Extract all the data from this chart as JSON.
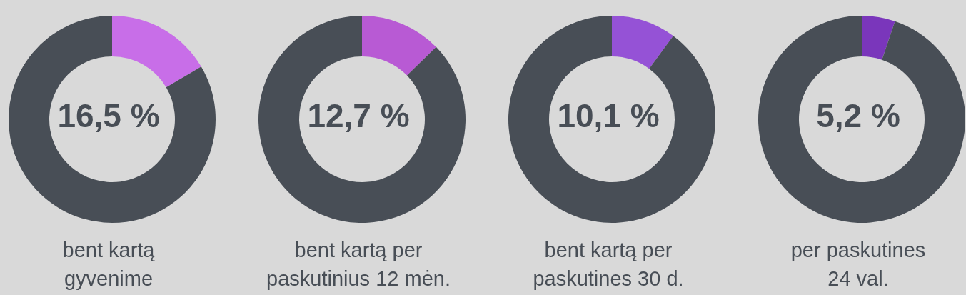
{
  "chart_data": [
    {
      "type": "donut",
      "categories": [
        null,
        null
      ],
      "values": [
        16.5,
        83.5
      ],
      "colors": [
        "#c86ee8",
        "#484e56"
      ],
      "annotations": [
        "16,5 %"
      ],
      "xlabel": "bent kartą\ngyvenime"
    },
    {
      "type": "donut",
      "categories": [
        null,
        null
      ],
      "values": [
        12.7,
        87.3
      ],
      "colors": [
        "#b85ad4",
        "#484e56"
      ],
      "annotations": [
        "12,7 %"
      ],
      "xlabel": "bent kartą per\npaskutinius 12 mėn."
    },
    {
      "type": "donut",
      "categories": [
        null,
        null
      ],
      "values": [
        10.1,
        89.9
      ],
      "colors": [
        "#9552d6",
        "#484e56"
      ],
      "annotations": [
        "10,1 %"
      ],
      "xlabel": "bent kartą per\npaskutines 30 d."
    },
    {
      "type": "donut",
      "categories": [
        null,
        null
      ],
      "values": [
        5.2,
        94.8
      ],
      "colors": [
        "#7a36bb",
        "#484e56"
      ],
      "annotations": [
        "5,2 %"
      ],
      "xlabel": "per paskutines\n24 val."
    }
  ]
}
